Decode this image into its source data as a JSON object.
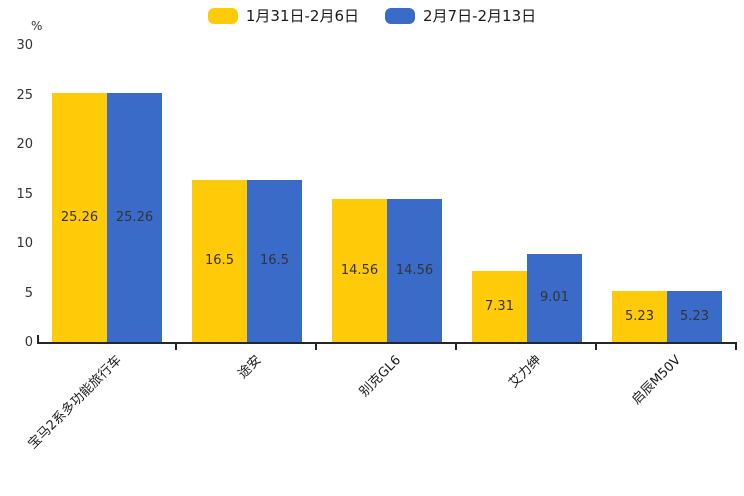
{
  "page": {
    "background": "#ffffff"
  },
  "legend": {
    "items": [
      {
        "label": "1月31日-2月6日",
        "color": "#FFCA08"
      },
      {
        "label": "2月7日-2月13日",
        "color": "#3B6BC9"
      }
    ]
  },
  "chart_data": {
    "type": "bar",
    "title": "",
    "xlabel": "",
    "ylabel": "%",
    "categories": [
      "宝马2系多功能旅行车",
      "途安",
      "别克GL6",
      "艾力绅",
      "启辰M50V"
    ],
    "series": [
      {
        "name": "1月31日-2月6日",
        "color": "#FFCA08",
        "values": [
          25.26,
          16.5,
          14.56,
          7.31,
          5.23
        ]
      },
      {
        "name": "2月7日-2月13日",
        "color": "#3B6BC9",
        "values": [
          25.26,
          16.5,
          14.56,
          9.01,
          5.23
        ]
      }
    ],
    "value_labels": [
      [
        "25.26",
        "16.5",
        "14.56",
        "7.31",
        "5.23"
      ],
      [
        "25.26",
        "16.5",
        "14.56",
        "9.01",
        "5.23"
      ]
    ],
    "ylim": [
      0,
      30
    ],
    "yticks": [
      0,
      5,
      10,
      15,
      20,
      25,
      30
    ],
    "grid": false,
    "legend_position": "top",
    "value_label_color": "#333333",
    "axis_color": "#262626"
  }
}
